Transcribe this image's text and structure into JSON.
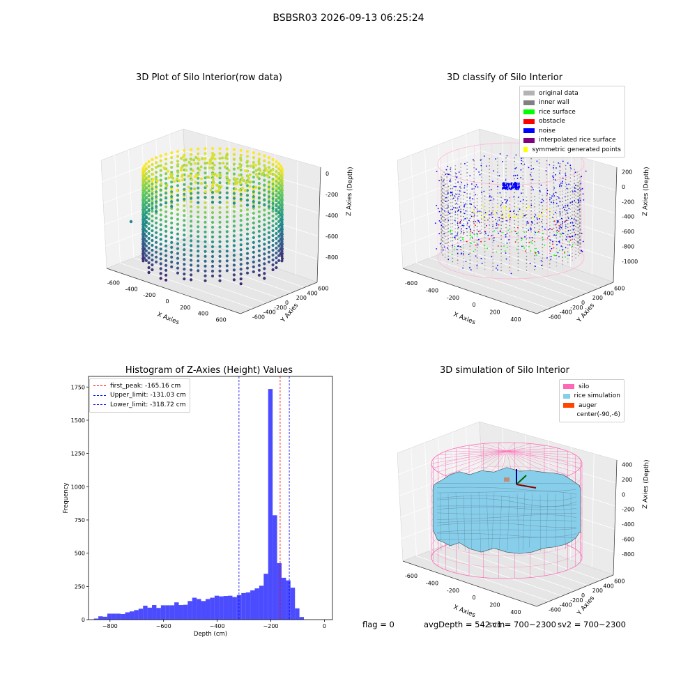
{
  "suptitle": "BSBSR03 2026-09-13 06:25:24",
  "footer": {
    "flag": "flag = 0",
    "avg_depth": "avgDepth = 542 cm",
    "sv1": "sv1 = 700~2300",
    "sv2": "sv2 = 700~2300"
  },
  "chart_data": [
    {
      "type": "scatter",
      "title": "3D Plot of Silo Interior(row data)",
      "xlabel": "X Axies",
      "ylabel": "Y Axies",
      "zlabel": "Z Axies (Depth)",
      "x_ticks": [
        "-600",
        "-400",
        "-200",
        "0",
        "200",
        "400",
        "600"
      ],
      "y_ticks": [
        "-600",
        "-400",
        "-200",
        "0",
        "200",
        "400",
        "600"
      ],
      "z_ticks": [
        "0",
        "-200",
        "-400",
        "-600",
        "-800"
      ],
      "colormap": "viridis"
    },
    {
      "type": "scatter",
      "title": "3D classify of Silo Interior",
      "xlabel": "X Axies",
      "ylabel": "Y Axies",
      "zlabel": "Z Axies (Depth)",
      "x_ticks": [
        "-600",
        "-400",
        "-200",
        "0",
        "200",
        "400"
      ],
      "y_ticks": [
        "-600",
        "-400",
        "-200",
        "0",
        "200",
        "400",
        "600"
      ],
      "z_ticks": [
        "200",
        "0",
        "-200",
        "-400",
        "-600",
        "-800",
        "-1000"
      ],
      "legend": [
        {
          "label": "original data",
          "color": "#b3b3b3"
        },
        {
          "label": "inner wall",
          "color": "#808080"
        },
        {
          "label": "rice surface",
          "color": "#00ff00"
        },
        {
          "label": "obstacle",
          "color": "#ff0000"
        },
        {
          "label": "noise",
          "color": "#0000ff"
        },
        {
          "label": "interpolated rice surface",
          "color": "#800080"
        },
        {
          "label": "symmetric generated points",
          "color": "#ffff00"
        }
      ]
    },
    {
      "type": "bar",
      "title": "Histogram of Z-Axies (Height) Values",
      "xlabel": "Depth (cm)",
      "ylabel": "Frequency",
      "xlim": [
        -880,
        30
      ],
      "ylim": [
        0,
        1830
      ],
      "x_ticks": [
        -800,
        -600,
        -400,
        -200,
        0
      ],
      "y_ticks": [
        0,
        250,
        500,
        750,
        1000,
        1250,
        1500,
        1750
      ],
      "bin_start": -860,
      "bin_width": 16.67,
      "values": [
        8,
        25,
        22,
        45,
        45,
        45,
        42,
        55,
        62,
        72,
        82,
        105,
        90,
        110,
        88,
        108,
        108,
        108,
        130,
        110,
        112,
        140,
        165,
        155,
        140,
        155,
        165,
        180,
        175,
        178,
        180,
        170,
        185,
        200,
        205,
        220,
        235,
        255,
        345,
        1735,
        785,
        425,
        315,
        295,
        240,
        85,
        20
      ],
      "bar_color": "#0000ff",
      "lines": [
        {
          "label": "first_peak: -165.16 cm",
          "value": -165.16,
          "color": "#ff0000"
        },
        {
          "label": "Upper_limit: -131.03 cm",
          "value": -131.03,
          "color": "#0000ff"
        },
        {
          "label": "Lower_limit: -318.72 cm",
          "value": -318.72,
          "color": "#0000ff"
        }
      ]
    },
    {
      "type": "surface",
      "title": "3D simulation of Silo Interior",
      "xlabel": "X Axies",
      "ylabel": "Y Axies",
      "zlabel": "Z Axies (Depth)",
      "x_ticks": [
        "-600",
        "-400",
        "-200",
        "0",
        "200",
        "400"
      ],
      "y_ticks": [
        "-600",
        "-400",
        "-200",
        "0",
        "200",
        "400",
        "600"
      ],
      "z_ticks": [
        "400",
        "200",
        "0",
        "-200",
        "-400",
        "-600",
        "-800"
      ],
      "legend": [
        {
          "label": "silo",
          "color": "#ff69b4"
        },
        {
          "label": "rice simulation",
          "color": "#87ceeb"
        },
        {
          "label": "auger",
          "color": "#ff4500"
        },
        {
          "label": "center(-90,-6)",
          "color": ""
        }
      ]
    }
  ]
}
